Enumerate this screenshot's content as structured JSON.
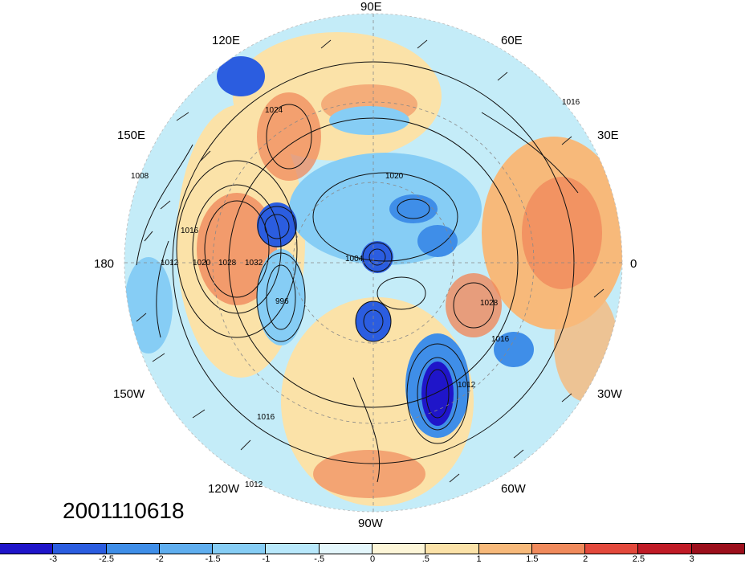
{
  "timestamp": "2001110618",
  "lon_labels": [
    {
      "text": "90E",
      "id": "90e"
    },
    {
      "text": "120E",
      "id": "120e"
    },
    {
      "text": "60E",
      "id": "60e"
    },
    {
      "text": "150E",
      "id": "150e"
    },
    {
      "text": "30E",
      "id": "30e"
    },
    {
      "text": "180",
      "id": "180"
    },
    {
      "text": "0",
      "id": "0"
    },
    {
      "text": "150W",
      "id": "150w"
    },
    {
      "text": "30W",
      "id": "30w"
    },
    {
      "text": "120W",
      "id": "120w"
    },
    {
      "text": "60W",
      "id": "60w"
    },
    {
      "text": "90W",
      "id": "90w"
    }
  ],
  "contour_labels": [
    "1008",
    "1012",
    "1016",
    "1020",
    "1024",
    "1028",
    "1032",
    "1004",
    "996"
  ],
  "colorbar": {
    "colors": [
      "#1f15c9",
      "#2b5de0",
      "#3f8ee8",
      "#5faeef",
      "#86cdf5",
      "#b8e8fb",
      "#e4f7fc",
      "#fdf6d8",
      "#fbe2a8",
      "#f7b97a",
      "#f08a5c",
      "#e3493c",
      "#c01b26",
      "#9c0f1c"
    ],
    "labels": [
      "-3",
      "-2.5",
      "-2",
      "-1.5",
      "-1",
      "-.5",
      "0",
      ".5",
      "1",
      "1.5",
      "2",
      "2.5",
      "3"
    ]
  }
}
